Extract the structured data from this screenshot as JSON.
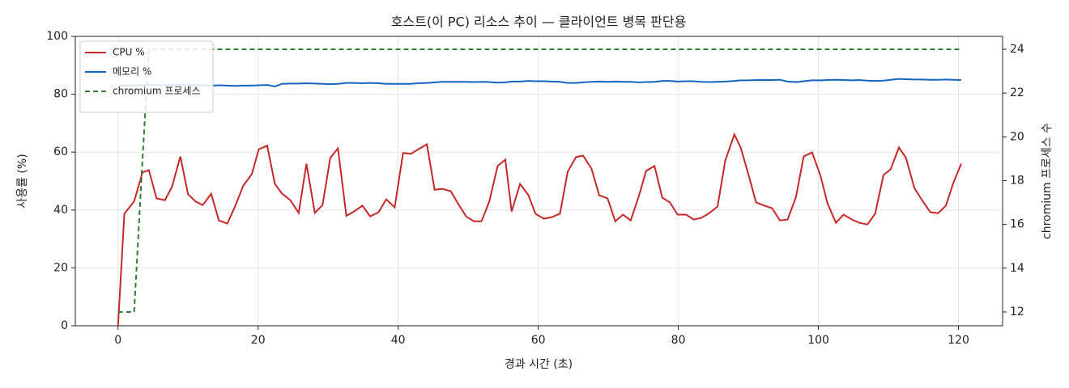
{
  "chart_data": {
    "type": "line",
    "title": "호스트(이 PC) 리소스 추이 — 클라이언트 병목 판단용",
    "xlabel": "경과 시간 (초)",
    "ylabel": "사용률 (%)",
    "y2label": "chromium 프로세스 수",
    "x": [
      0,
      0.9,
      2.3,
      3.5,
      4.4,
      5.5,
      6.7,
      7.7,
      8.9,
      10,
      11.1,
      12.1,
      13.3,
      14.4,
      15.6,
      16.7,
      17.9,
      19.1,
      20.1,
      21.3,
      22.4,
      23.4,
      24.6,
      25.8,
      26.9,
      28.1,
      29.2,
      30.3,
      31.4,
      32.6,
      33.7,
      34.9,
      36,
      37.2,
      38.3,
      39.5,
      40.7,
      41.8,
      42.9,
      44.1,
      45.2,
      46.3,
      47.5,
      48.6,
      49.7,
      50.8,
      51.9,
      53,
      54.2,
      55.3,
      56.2,
      57.4,
      58.6,
      59.6,
      60.8,
      61.9,
      63.1,
      64.2,
      65.4,
      66.4,
      67.6,
      68.7,
      69.9,
      71,
      72.1,
      73.2,
      74.4,
      75.4,
      76.6,
      77.7,
      78.8,
      79.9,
      81.1,
      82.2,
      83.3,
      84.4,
      85.6,
      86.7,
      88,
      88.9,
      90,
      91.1,
      92.3,
      93.4,
      94.5,
      95.6,
      96.8,
      97.9,
      99.1,
      100.3,
      101.3,
      102.5,
      103.6,
      104.8,
      105.8,
      107,
      108.1,
      109.3,
      110.3,
      111.5,
      112.5,
      113.7,
      114.8,
      116,
      117.1,
      118.2,
      119.3,
      120.4
    ],
    "series": [
      {
        "name": "CPU %",
        "color": "#c62828",
        "linestyle": "solid",
        "values": [
          0,
          38.7,
          43,
          53,
          53.8,
          44,
          43.4,
          48,
          58.5,
          45.4,
          42.9,
          41.7,
          45.6,
          36.4,
          35.3,
          41.2,
          48.5,
          52.4,
          61,
          62.2,
          49,
          45.7,
          43.4,
          39,
          56,
          39,
          41.7,
          58,
          61.3,
          38,
          39.5,
          41.5,
          37.8,
          39.2,
          43.7,
          40.9,
          59.7,
          59.4,
          61,
          62.7,
          47,
          47.3,
          46.5,
          42,
          37.8,
          36.1,
          36.1,
          42.9,
          55.2,
          57.4,
          39.5,
          49,
          45.1,
          38.7,
          37,
          37.5,
          38.7,
          53.2,
          58.3,
          58.8,
          54.3,
          45.1,
          44,
          36.1,
          38.4,
          36.4,
          45.1,
          53.5,
          55.2,
          44.3,
          42.6,
          38.4,
          38.4,
          36.7,
          37.3,
          38.9,
          41.2,
          57.1,
          66.1,
          61.6,
          52.4,
          42.6,
          41.5,
          40.6,
          36.4,
          36.7,
          44.5,
          58.5,
          59.9,
          51.8,
          42.3,
          35.6,
          38.4,
          36.7,
          35.6,
          35,
          38.7,
          52.1,
          54,
          61.6,
          58,
          47.6,
          43.4,
          39.2,
          38.9,
          41.5,
          49.6,
          56
        ]
      },
      {
        "name": "메모리 %",
        "color": "#1565c0",
        "linestyle": "solid",
        "values": [
          83.0,
          83.0,
          83.1,
          83.1,
          83.2,
          83.2,
          83.1,
          83.2,
          83.2,
          83.1,
          83.2,
          83.1,
          83.0,
          83.1,
          83.0,
          82.9,
          83.0,
          83.0,
          83.1,
          83.2,
          82.7,
          83.6,
          83.7,
          83.7,
          83.8,
          83.7,
          83.6,
          83.5,
          83.6,
          83.9,
          83.9,
          83.8,
          83.9,
          83.8,
          83.6,
          83.6,
          83.6,
          83.6,
          83.8,
          83.9,
          84.1,
          84.3,
          84.3,
          84.3,
          84.3,
          84.2,
          84.3,
          84.2,
          84.0,
          84.1,
          84.4,
          84.4,
          84.6,
          84.5,
          84.5,
          84.4,
          84.3,
          83.9,
          83.9,
          84.1,
          84.3,
          84.4,
          84.3,
          84.4,
          84.3,
          84.3,
          84.1,
          84.2,
          84.3,
          84.6,
          84.6,
          84.4,
          84.5,
          84.5,
          84.3,
          84.2,
          84.3,
          84.4,
          84.6,
          84.8,
          84.8,
          84.9,
          84.9,
          84.9,
          85.0,
          84.4,
          84.2,
          84.5,
          84.8,
          84.8,
          84.9,
          85.0,
          84.9,
          84.8,
          84.9,
          84.7,
          84.6,
          84.7,
          85.0,
          85.3,
          85.2,
          85.1,
          85.1,
          85.0,
          85.0,
          85.1,
          85.0,
          84.9
        ]
      },
      {
        "name": "chromium 프로세스",
        "color": "#2e7d32",
        "linestyle": "dashed",
        "axis": "y2",
        "values": [
          12,
          12,
          12,
          19,
          24,
          24,
          24,
          24,
          24,
          24,
          24,
          24,
          24,
          24,
          24,
          24,
          24,
          24,
          24,
          24,
          24,
          24,
          24,
          24,
          24,
          24,
          24,
          24,
          24,
          24,
          24,
          24,
          24,
          24,
          24,
          24,
          24,
          24,
          24,
          24,
          24,
          24,
          24,
          24,
          24,
          24,
          24,
          24,
          24,
          24,
          24,
          24,
          24,
          24,
          24,
          24,
          24,
          24,
          24,
          24,
          24,
          24,
          24,
          24,
          24,
          24,
          24,
          24,
          24,
          24,
          24,
          24,
          24,
          24,
          24,
          24,
          24,
          24,
          24,
          24,
          24,
          24,
          24,
          24,
          24,
          24,
          24,
          24,
          24,
          24,
          24,
          24,
          24,
          24,
          24,
          24,
          24,
          24,
          24,
          24,
          24,
          24,
          24,
          24,
          24,
          24,
          24,
          24
        ]
      }
    ],
    "xlim": [
      -6.1,
      126.3
    ],
    "xticks": [
      0,
      20,
      40,
      60,
      80,
      100,
      120
    ],
    "ylim": [
      0,
      100
    ],
    "yticks": [
      0,
      20,
      40,
      60,
      80,
      100
    ],
    "y2lim": [
      11.37,
      24.59
    ],
    "y2ticks": [
      12,
      14,
      16,
      18,
      20,
      22,
      24
    ],
    "grid": true,
    "legend": "upper left"
  }
}
